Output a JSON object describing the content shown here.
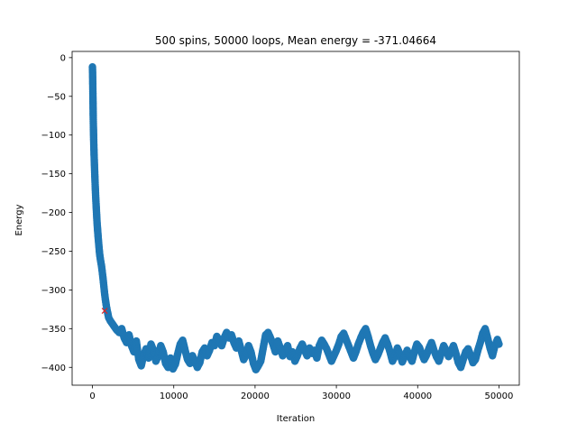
{
  "chart_data": {
    "type": "scatter",
    "title": "500 spins, 50000 loops, Mean energy = -371.04664",
    "xlabel": "Iteration",
    "ylabel": "Energy",
    "xlim": [
      -2500,
      52500
    ],
    "ylim": [
      -423,
      8
    ],
    "xticks": [
      0,
      10000,
      20000,
      30000,
      40000,
      50000
    ],
    "yticks": [
      0,
      -50,
      -100,
      -150,
      -200,
      -250,
      -300,
      -350,
      -400
    ],
    "grid": false,
    "series": [
      {
        "color": "#1f77b4",
        "marker": "circle",
        "points": [
          [
            0,
            -12
          ],
          [
            20,
            -20
          ],
          [
            40,
            -35
          ],
          [
            60,
            -50
          ],
          [
            80,
            -65
          ],
          [
            100,
            -80
          ],
          [
            130,
            -95
          ],
          [
            160,
            -110
          ],
          [
            200,
            -125
          ],
          [
            250,
            -140
          ],
          [
            300,
            -155
          ],
          [
            350,
            -168
          ],
          [
            400,
            -180
          ],
          [
            450,
            -190
          ],
          [
            500,
            -200
          ],
          [
            550,
            -210
          ],
          [
            600,
            -218
          ],
          [
            650,
            -225
          ],
          [
            700,
            -232
          ],
          [
            750,
            -238
          ],
          [
            800,
            -244
          ],
          [
            850,
            -250
          ],
          [
            900,
            -255
          ],
          [
            1000,
            -262
          ],
          [
            1100,
            -268
          ],
          [
            1200,
            -276
          ],
          [
            1300,
            -285
          ],
          [
            1400,
            -295
          ],
          [
            1500,
            -305
          ],
          [
            1600,
            -313
          ],
          [
            1700,
            -320
          ],
          [
            1800,
            -326
          ],
          [
            1900,
            -331
          ],
          [
            2000,
            -336
          ],
          [
            2200,
            -340
          ],
          [
            2400,
            -343
          ],
          [
            2600,
            -346
          ],
          [
            2800,
            -349
          ],
          [
            3000,
            -352
          ],
          [
            3300,
            -355
          ],
          [
            3600,
            -350
          ],
          [
            3900,
            -362
          ],
          [
            4200,
            -368
          ],
          [
            4500,
            -358
          ],
          [
            4800,
            -372
          ],
          [
            5100,
            -380
          ],
          [
            5400,
            -366
          ],
          [
            5700,
            -390
          ],
          [
            6000,
            -398
          ],
          [
            6300,
            -384
          ],
          [
            6600,
            -376
          ],
          [
            6900,
            -388
          ],
          [
            7200,
            -370
          ],
          [
            7500,
            -378
          ],
          [
            7800,
            -392
          ],
          [
            8100,
            -385
          ],
          [
            8400,
            -372
          ],
          [
            8700,
            -380
          ],
          [
            9000,
            -395
          ],
          [
            9300,
            -400
          ],
          [
            9600,
            -388
          ],
          [
            9900,
            -402
          ],
          [
            10200,
            -396
          ],
          [
            10500,
            -382
          ],
          [
            10800,
            -370
          ],
          [
            11100,
            -365
          ],
          [
            11400,
            -378
          ],
          [
            11700,
            -390
          ],
          [
            12000,
            -395
          ],
          [
            12300,
            -385
          ],
          [
            12600,
            -392
          ],
          [
            12900,
            -400
          ],
          [
            13200,
            -394
          ],
          [
            13500,
            -380
          ],
          [
            13800,
            -375
          ],
          [
            14100,
            -385
          ],
          [
            14400,
            -378
          ],
          [
            14700,
            -368
          ],
          [
            15000,
            -372
          ],
          [
            15300,
            -360
          ],
          [
            15600,
            -366
          ],
          [
            15900,
            -372
          ],
          [
            16200,
            -362
          ],
          [
            16500,
            -355
          ],
          [
            16800,
            -362
          ],
          [
            17100,
            -358
          ],
          [
            17400,
            -368
          ],
          [
            17700,
            -375
          ],
          [
            18000,
            -366
          ],
          [
            18300,
            -378
          ],
          [
            18600,
            -390
          ],
          [
            18900,
            -384
          ],
          [
            19200,
            -372
          ],
          [
            19500,
            -380
          ],
          [
            19800,
            -395
          ],
          [
            20100,
            -403
          ],
          [
            20400,
            -398
          ],
          [
            20700,
            -392
          ],
          [
            21000,
            -375
          ],
          [
            21300,
            -358
          ],
          [
            21600,
            -355
          ],
          [
            21900,
            -362
          ],
          [
            22200,
            -370
          ],
          [
            22500,
            -380
          ],
          [
            22800,
            -366
          ],
          [
            23100,
            -375
          ],
          [
            23400,
            -385
          ],
          [
            23700,
            -378
          ],
          [
            24000,
            -372
          ],
          [
            24300,
            -386
          ],
          [
            24600,
            -380
          ],
          [
            24900,
            -392
          ],
          [
            25200,
            -385
          ],
          [
            25500,
            -376
          ],
          [
            25800,
            -370
          ],
          [
            26100,
            -378
          ],
          [
            26400,
            -385
          ],
          [
            26700,
            -375
          ],
          [
            27000,
            -382
          ],
          [
            27300,
            -378
          ],
          [
            27600,
            -388
          ],
          [
            27900,
            -372
          ],
          [
            28200,
            -365
          ],
          [
            28500,
            -370
          ],
          [
            28800,
            -376
          ],
          [
            29100,
            -384
          ],
          [
            29400,
            -392
          ],
          [
            29700,
            -385
          ],
          [
            30000,
            -378
          ],
          [
            30300,
            -370
          ],
          [
            30600,
            -360
          ],
          [
            30900,
            -356
          ],
          [
            31200,
            -364
          ],
          [
            31500,
            -372
          ],
          [
            31800,
            -380
          ],
          [
            32100,
            -388
          ],
          [
            32400,
            -380
          ],
          [
            32700,
            -370
          ],
          [
            33000,
            -362
          ],
          [
            33300,
            -355
          ],
          [
            33600,
            -350
          ],
          [
            33900,
            -360
          ],
          [
            34200,
            -372
          ],
          [
            34500,
            -382
          ],
          [
            34800,
            -390
          ],
          [
            35100,
            -384
          ],
          [
            35400,
            -376
          ],
          [
            35700,
            -368
          ],
          [
            36000,
            -362
          ],
          [
            36300,
            -370
          ],
          [
            36600,
            -380
          ],
          [
            36900,
            -392
          ],
          [
            37200,
            -386
          ],
          [
            37500,
            -375
          ],
          [
            37800,
            -382
          ],
          [
            38100,
            -393
          ],
          [
            38400,
            -386
          ],
          [
            38700,
            -378
          ],
          [
            39000,
            -385
          ],
          [
            39300,
            -392
          ],
          [
            39600,
            -380
          ],
          [
            39900,
            -370
          ],
          [
            40200,
            -374
          ],
          [
            40500,
            -382
          ],
          [
            40800,
            -390
          ],
          [
            41100,
            -384
          ],
          [
            41400,
            -375
          ],
          [
            41700,
            -368
          ],
          [
            42000,
            -378
          ],
          [
            42300,
            -386
          ],
          [
            42600,
            -392
          ],
          [
            42900,
            -382
          ],
          [
            43200,
            -372
          ],
          [
            43500,
            -378
          ],
          [
            43800,
            -386
          ],
          [
            44100,
            -380
          ],
          [
            44400,
            -372
          ],
          [
            44700,
            -382
          ],
          [
            45000,
            -394
          ],
          [
            45300,
            -400
          ],
          [
            45600,
            -390
          ],
          [
            45900,
            -380
          ],
          [
            46200,
            -376
          ],
          [
            46500,
            -384
          ],
          [
            46800,
            -394
          ],
          [
            47100,
            -390
          ],
          [
            47400,
            -378
          ],
          [
            47700,
            -368
          ],
          [
            48000,
            -356
          ],
          [
            48300,
            -350
          ],
          [
            48600,
            -362
          ],
          [
            48900,
            -375
          ],
          [
            49200,
            -385
          ],
          [
            49500,
            -372
          ],
          [
            49800,
            -364
          ],
          [
            50000,
            -370
          ]
        ]
      },
      {
        "color": "#d62728",
        "marker": "x",
        "points": [
          [
            1500,
            -327
          ]
        ]
      }
    ]
  }
}
